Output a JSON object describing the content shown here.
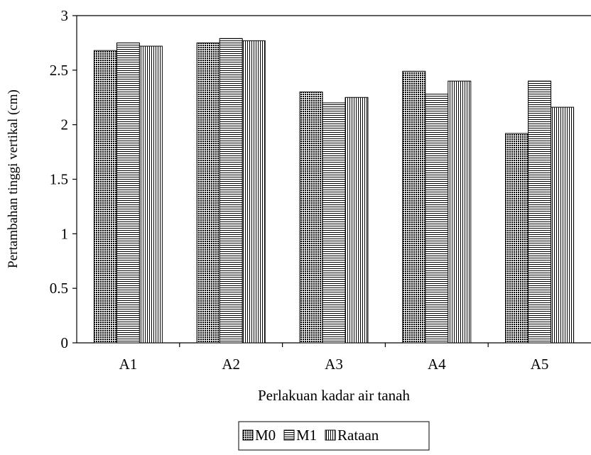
{
  "chart_data": {
    "type": "bar",
    "title": "",
    "xlabel": "Perlakuan kadar air tanah",
    "ylabel": "Pertambahan tinggi vertikal (cm)",
    "categories": [
      "A1",
      "A2",
      "A3",
      "A4",
      "A5"
    ],
    "series": [
      {
        "name": "M0",
        "values": [
          2.68,
          2.75,
          2.3,
          2.49,
          1.92
        ]
      },
      {
        "name": "M1",
        "values": [
          2.75,
          2.79,
          2.2,
          2.28,
          2.4
        ]
      },
      {
        "name": "Rataan",
        "values": [
          2.72,
          2.77,
          2.25,
          2.4,
          2.16
        ]
      }
    ],
    "ylim": [
      0,
      3
    ],
    "yticks": [
      "0",
      "0.5",
      "1",
      "1.5",
      "2",
      "2.5",
      "3"
    ],
    "grid": false,
    "legend_position": "bottom"
  }
}
